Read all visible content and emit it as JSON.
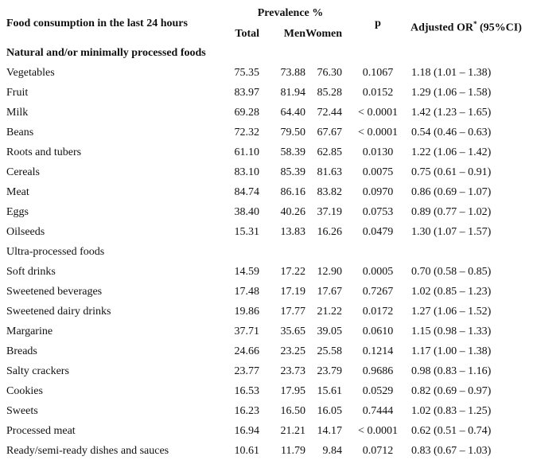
{
  "header": {
    "title": "Food consumption in the last 24 hours",
    "prevalence": "Prevalence %",
    "columns": [
      "Total",
      "Men",
      "Women"
    ],
    "p": "p",
    "or_label": "Adjusted OR",
    "or_sup": "*",
    "or_ci": "(95%CI)"
  },
  "sections": [
    {
      "title": "Natural and/or minimally processed foods",
      "rows": [
        [
          "Vegetables",
          "75.35",
          "73.88",
          "76.30",
          "0.1067",
          "1.18 (1.01 – 1.38)"
        ],
        [
          "Fruit",
          "83.97",
          "81.94",
          "85.28",
          "0.0152",
          "1.29 (1.06 – 1.58)"
        ],
        [
          "Milk",
          "69.28",
          "64.40",
          "72.44",
          "< 0.0001",
          "1.42 (1.23 – 1.65)"
        ],
        [
          "Beans",
          "72.32",
          "79.50",
          "67.67",
          "< 0.0001",
          "0.54 (0.46 – 0.63)"
        ],
        [
          "Roots and tubers",
          "61.10",
          "58.39",
          "62.85",
          "0.0130",
          "1.22 (1.06 – 1.42)"
        ],
        [
          "Cereals",
          "83.10",
          "85.39",
          "81.63",
          "0.0075",
          "0.75 (0.61 – 0.91)"
        ],
        [
          "Meat",
          "84.74",
          "86.16",
          "83.82",
          "0.0970",
          "0.86 (0.69 – 1.07)"
        ],
        [
          "Eggs",
          "38.40",
          "40.26",
          "37.19",
          "0.0753",
          "0.89 (0.77 – 1.02)"
        ],
        [
          "Oilseeds",
          "15.31",
          "13.83",
          "16.26",
          "0.0479",
          "1.30 (1.07 – 1.57)"
        ]
      ]
    },
    {
      "title": "Ultra-processed foods",
      "rows": [
        [
          "Soft drinks",
          "14.59",
          "17.22",
          "12.90",
          "0.0005",
          "0.70 (0.58 – 0.85)"
        ],
        [
          "Sweetened beverages",
          "17.48",
          "17.19",
          "17.67",
          "0.7267",
          "1.02 (0.85 – 1.23)"
        ],
        [
          "Sweetened dairy drinks",
          "19.86",
          "17.77",
          "21.22",
          "0.0172",
          "1.27 (1.06 – 1.52)"
        ],
        [
          "Margarine",
          "37.71",
          "35.65",
          "39.05",
          "0.0610",
          "1.15 (0.98 – 1.33)"
        ],
        [
          "Breads",
          "24.66",
          "23.25",
          "25.58",
          "0.1214",
          "1.17 (1.00 – 1.38)"
        ],
        [
          "Salty crackers",
          "23.77",
          "23.73",
          "23.79",
          "0.9686",
          "0.98 (0.83 – 1.16)"
        ],
        [
          "Cookies",
          "16.53",
          "17.95",
          "15.61",
          "0.0529",
          "0.82 (0.69 – 0.97)"
        ],
        [
          "Sweets",
          "16.23",
          "16.50",
          "16.05",
          "0.7444",
          "1.02 (0.83 – 1.25)"
        ],
        [
          "Processed meat",
          "16.94",
          "21.21",
          "14.17",
          "< 0.0001",
          "0.62 (0.51 – 0.74)"
        ],
        [
          "Ready/semi-ready dishes and sauces",
          "10.61",
          "11.79",
          "9.84",
          "0.0712",
          "0.83 (0.67 – 1.03)"
        ]
      ]
    }
  ]
}
